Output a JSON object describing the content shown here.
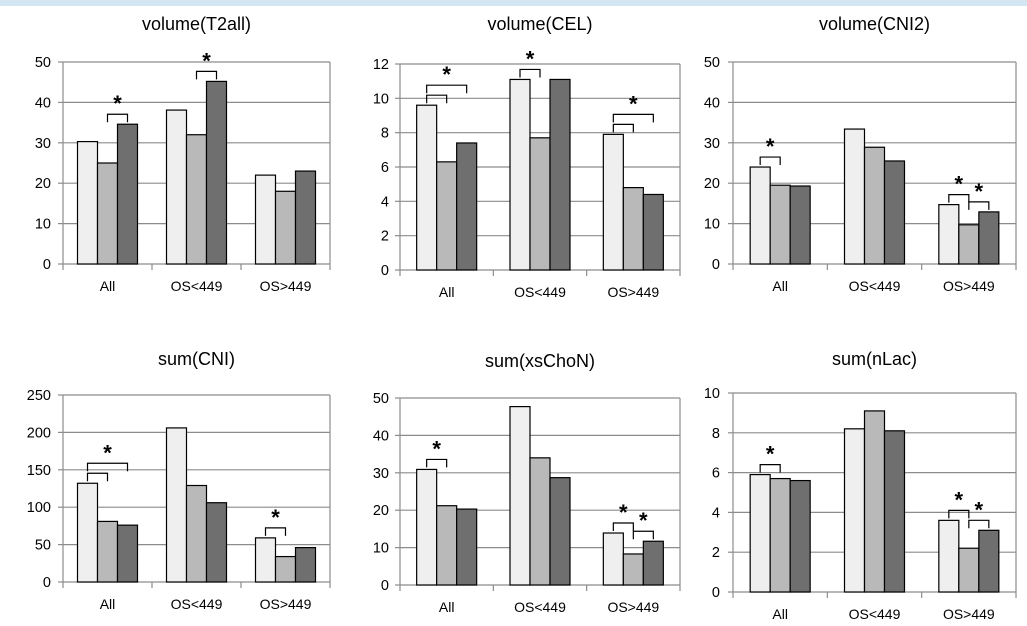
{
  "colors": {
    "bar_light": "#efefef",
    "bar_mid": "#b9b9b9",
    "bar_dark": "#6f6f6f",
    "grid": "#8c8c8c",
    "border": "#8c8c8c",
    "bar_stroke": "#000000"
  },
  "chart_data": [
    {
      "type": "bar",
      "title": "volume(T2all)",
      "categories": [
        "All",
        "OS<449",
        "OS>449"
      ],
      "ylim": [
        0,
        50
      ],
      "yticks": [
        0,
        10,
        20,
        30,
        40,
        50
      ],
      "series": [
        {
          "values": [
            30.3,
            38.1,
            22.0
          ]
        },
        {
          "values": [
            25.0,
            32.0,
            18.0
          ]
        },
        {
          "values": [
            34.6,
            45.2,
            23.0
          ]
        }
      ],
      "significance": [
        {
          "category": 0,
          "from": 1,
          "to": 2,
          "label": "*"
        },
        {
          "category": 1,
          "from": 1,
          "to": 2,
          "label": "*"
        }
      ]
    },
    {
      "type": "bar",
      "title": "volume(CEL)",
      "categories": [
        "All",
        "OS<449",
        "OS>449"
      ],
      "ylim": [
        0,
        12
      ],
      "yticks": [
        0,
        2,
        4,
        6,
        8,
        10,
        12
      ],
      "series": [
        {
          "values": [
            9.6,
            11.1,
            7.9
          ]
        },
        {
          "values": [
            6.3,
            7.7,
            4.8
          ]
        },
        {
          "values": [
            7.4,
            11.1,
            4.4
          ]
        }
      ],
      "significance": [
        {
          "category": 0,
          "from": 0,
          "to": 1,
          "label": ""
        },
        {
          "category": 0,
          "from": 0,
          "to": 2,
          "label": "*"
        },
        {
          "category": 1,
          "from": 0,
          "to": 1,
          "label": "*"
        },
        {
          "category": 2,
          "from": 0,
          "to": 1,
          "label": ""
        },
        {
          "category": 2,
          "from": 0,
          "to": 2,
          "label": "*"
        }
      ]
    },
    {
      "type": "bar",
      "title": "volume(CNI2)",
      "categories": [
        "All",
        "OS<449",
        "OS>449"
      ],
      "ylim": [
        0,
        50
      ],
      "yticks": [
        0,
        10,
        20,
        30,
        40,
        50
      ],
      "series": [
        {
          "values": [
            24.0,
            33.4,
            14.7
          ]
        },
        {
          "values": [
            19.5,
            28.9,
            9.7
          ]
        },
        {
          "values": [
            19.3,
            25.5,
            12.9
          ]
        }
      ],
      "significance": [
        {
          "category": 0,
          "from": 0,
          "to": 1,
          "label": "*"
        },
        {
          "category": 2,
          "from": 0,
          "to": 1,
          "label": "*"
        },
        {
          "category": 2,
          "from": 1,
          "to": 2,
          "label": "*"
        }
      ]
    },
    {
      "type": "bar",
      "title": "sum(CNI)",
      "categories": [
        "All",
        "OS<449",
        "OS>449"
      ],
      "ylim": [
        0,
        250
      ],
      "yticks": [
        0,
        50,
        100,
        150,
        200,
        250
      ],
      "series": [
        {
          "values": [
            132,
            206,
            59
          ]
        },
        {
          "values": [
            81,
            129,
            34
          ]
        },
        {
          "values": [
            76,
            106,
            46
          ]
        }
      ],
      "significance": [
        {
          "category": 0,
          "from": 0,
          "to": 1,
          "label": ""
        },
        {
          "category": 0,
          "from": 0,
          "to": 2,
          "label": "*"
        },
        {
          "category": 2,
          "from": 0,
          "to": 1,
          "label": "*"
        }
      ]
    },
    {
      "type": "bar",
      "title": "sum(xsChoN)",
      "categories": [
        "All",
        "OS<449",
        "OS>449"
      ],
      "ylim": [
        0,
        50
      ],
      "yticks": [
        0,
        10,
        20,
        30,
        40,
        50
      ],
      "series": [
        {
          "values": [
            30.9,
            47.7,
            13.9
          ]
        },
        {
          "values": [
            21.2,
            34.0,
            8.3
          ]
        },
        {
          "values": [
            20.3,
            28.7,
            11.7
          ]
        }
      ],
      "significance": [
        {
          "category": 0,
          "from": 0,
          "to": 1,
          "label": "*"
        },
        {
          "category": 2,
          "from": 0,
          "to": 1,
          "label": "*"
        },
        {
          "category": 2,
          "from": 1,
          "to": 2,
          "label": "*"
        }
      ]
    },
    {
      "type": "bar",
      "title": "sum(nLac)",
      "categories": [
        "All",
        "OS<449",
        "OS>449"
      ],
      "ylim": [
        0,
        10
      ],
      "yticks": [
        0,
        2,
        4,
        6,
        8,
        10
      ],
      "series": [
        {
          "values": [
            5.9,
            8.2,
            3.6
          ]
        },
        {
          "values": [
            5.7,
            9.1,
            2.2
          ]
        },
        {
          "values": [
            5.6,
            8.1,
            3.1
          ]
        }
      ],
      "significance": [
        {
          "category": 0,
          "from": 0,
          "to": 1,
          "label": "*"
        },
        {
          "category": 2,
          "from": 0,
          "to": 1,
          "label": "*"
        },
        {
          "category": 2,
          "from": 1,
          "to": 2,
          "label": "*"
        }
      ]
    }
  ]
}
